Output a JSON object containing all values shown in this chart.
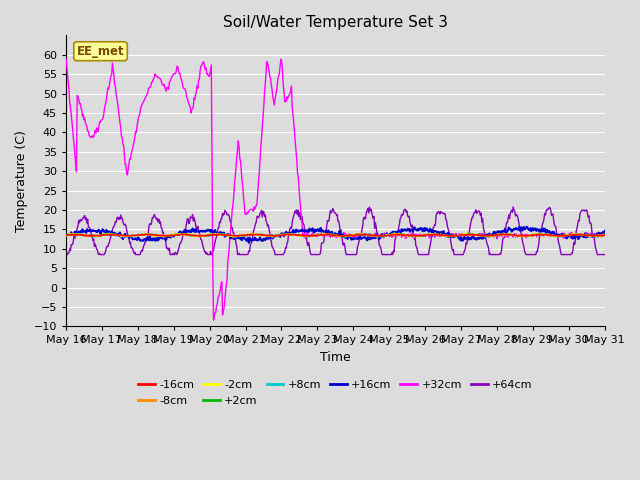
{
  "title": "Soil/Water Temperature Set 3",
  "xlabel": "Time",
  "ylabel": "Temperature (C)",
  "ylim": [
    -10,
    65
  ],
  "yticks": [
    -10,
    -5,
    0,
    5,
    10,
    15,
    20,
    25,
    30,
    35,
    40,
    45,
    50,
    55,
    60
  ],
  "n_days": 15,
  "xtick_labels": [
    "May 16",
    "May 17",
    "May 18",
    "May 19",
    "May 20",
    "May 21",
    "May 22",
    "May 23",
    "May 24",
    "May 25",
    "May 26",
    "May 27",
    "May 28",
    "May 29",
    "May 30",
    "May 31"
  ],
  "background_color": "#dcdcdc",
  "plot_bg_color": "#dcdcdc",
  "grid_color": "#ffffff",
  "legend_entries": [
    {
      "label": "-16cm",
      "color": "#ff0000"
    },
    {
      "label": "-8cm",
      "color": "#ff8800"
    },
    {
      "label": "-2cm",
      "color": "#ffff00"
    },
    {
      "label": "+2cm",
      "color": "#00bb00"
    },
    {
      "label": "+8cm",
      "color": "#00cccc"
    },
    {
      "label": "+16cm",
      "color": "#0000cc"
    },
    {
      "label": "+32cm",
      "color": "#ff00ff"
    },
    {
      "label": "+64cm",
      "color": "#8800bb"
    }
  ],
  "annotation_text": "EE_met",
  "base_temp": 13.5,
  "figsize": [
    6.4,
    4.8
  ],
  "dpi": 100
}
